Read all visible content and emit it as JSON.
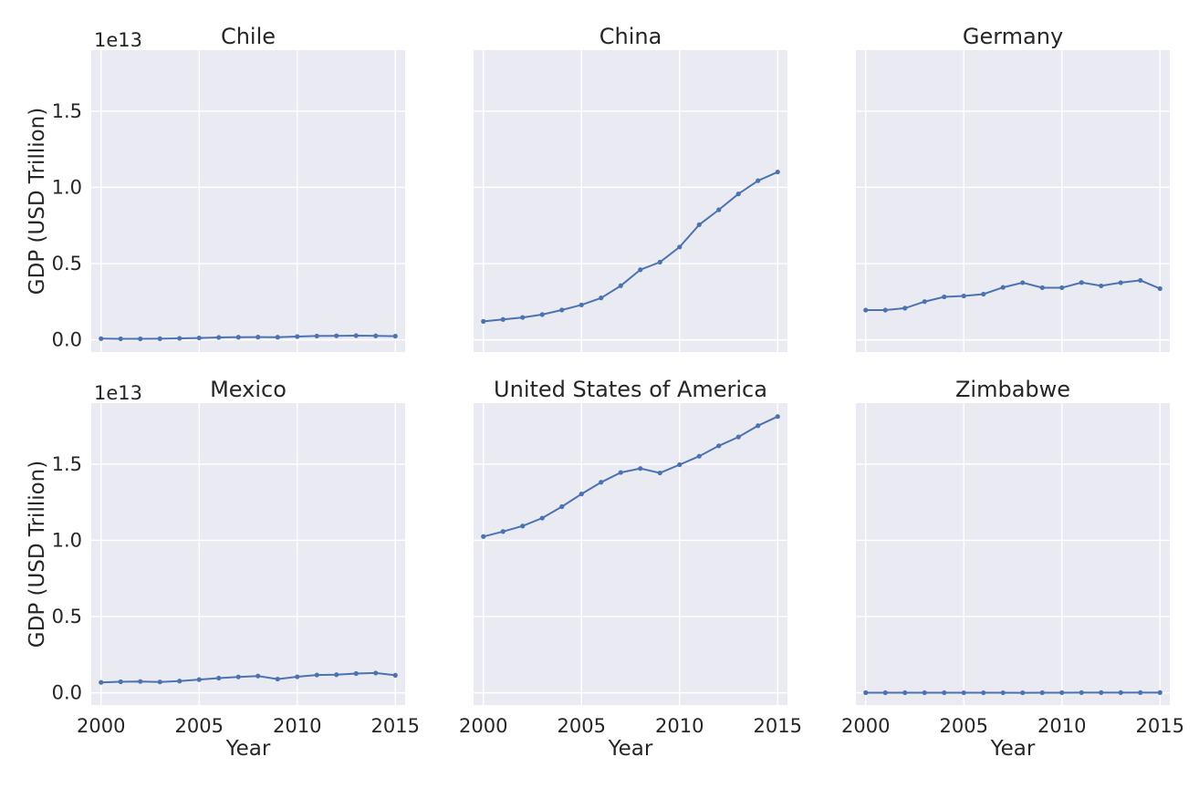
{
  "chart_data": {
    "type": "line",
    "xlabel": "Year",
    "ylabel": "GDP (USD Trillion)",
    "yaxis_offset_text": "1e13",
    "x_ticks": [
      2000,
      2005,
      2010,
      2015
    ],
    "x_tick_labels": [
      "2000",
      "2005",
      "2010",
      "2015"
    ],
    "y_ticks": [
      0,
      0.5,
      1.0,
      1.5
    ],
    "y_tick_labels": [
      "0.0",
      "0.5",
      "1.0",
      "1.5"
    ],
    "xlim": [
      1999.5,
      2015.5
    ],
    "ylim": [
      -0.08,
      1.9
    ],
    "y_unit_multiplier": "1e13",
    "grid": true,
    "sharey": true,
    "line_color": "#4c72b0",
    "background_color": "#eaeaf2",
    "x": [
      2000,
      2001,
      2002,
      2003,
      2004,
      2005,
      2006,
      2007,
      2008,
      2009,
      2010,
      2011,
      2012,
      2013,
      2014,
      2015
    ],
    "panels": [
      {
        "title": "Chile",
        "values": [
          0.0078,
          0.0069,
          0.0067,
          0.0076,
          0.01,
          0.0123,
          0.0155,
          0.0173,
          0.018,
          0.0172,
          0.0218,
          0.0252,
          0.0267,
          0.0278,
          0.026,
          0.0243
        ]
      },
      {
        "title": "China",
        "values": [
          0.121,
          0.134,
          0.147,
          0.166,
          0.196,
          0.229,
          0.275,
          0.355,
          0.46,
          0.51,
          0.609,
          0.755,
          0.853,
          0.957,
          1.044,
          1.101
        ]
      },
      {
        "title": "Germany",
        "values": [
          0.195,
          0.195,
          0.208,
          0.251,
          0.282,
          0.288,
          0.3,
          0.344,
          0.375,
          0.342,
          0.342,
          0.376,
          0.354,
          0.375,
          0.39,
          0.336
        ]
      },
      {
        "title": "Mexico",
        "values": [
          0.0684,
          0.0725,
          0.0744,
          0.0713,
          0.0771,
          0.0866,
          0.0966,
          0.1043,
          0.1101,
          0.09,
          0.1052,
          0.1171,
          0.1187,
          0.1263,
          0.1298,
          0.1152
        ]
      },
      {
        "title": "United States of America",
        "values": [
          1.025,
          1.058,
          1.094,
          1.146,
          1.221,
          1.304,
          1.381,
          1.445,
          1.471,
          1.442,
          1.496,
          1.552,
          1.62,
          1.678,
          1.752,
          1.812
        ]
      },
      {
        "title": "Zimbabwe",
        "values": [
          0.00067,
          0.00068,
          0.00063,
          0.00057,
          0.00054,
          0.00052,
          0.0005,
          0.00048,
          0.00044,
          0.00082,
          0.00096,
          0.00129,
          0.00145,
          0.00155,
          0.0016,
          0.00163
        ]
      }
    ]
  }
}
